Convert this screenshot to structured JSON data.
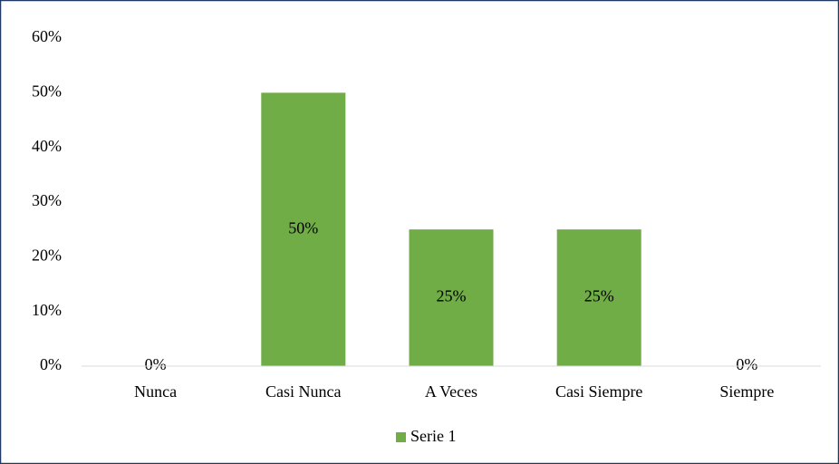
{
  "chart_data": {
    "type": "bar",
    "categories": [
      "Nunca",
      "Casi Nunca",
      "A Veces",
      "Casi Siempre",
      "Siempre"
    ],
    "series": [
      {
        "name": "Serie 1",
        "color": "#70ad47",
        "values": [
          0,
          50,
          25,
          25,
          0
        ],
        "value_labels": [
          "0%",
          "50%",
          "25%",
          "25%",
          "0%"
        ]
      }
    ],
    "ylim": [
      0,
      60
    ],
    "yticks": [
      {
        "value": 0,
        "label": "0%"
      },
      {
        "value": 10,
        "label": "10%"
      },
      {
        "value": 20,
        "label": "20%"
      },
      {
        "value": 30,
        "label": "30%"
      },
      {
        "value": 40,
        "label": "40%"
      },
      {
        "value": 50,
        "label": "50%"
      },
      {
        "value": 60,
        "label": "60%"
      }
    ],
    "grid": false,
    "legend": "bottom"
  }
}
